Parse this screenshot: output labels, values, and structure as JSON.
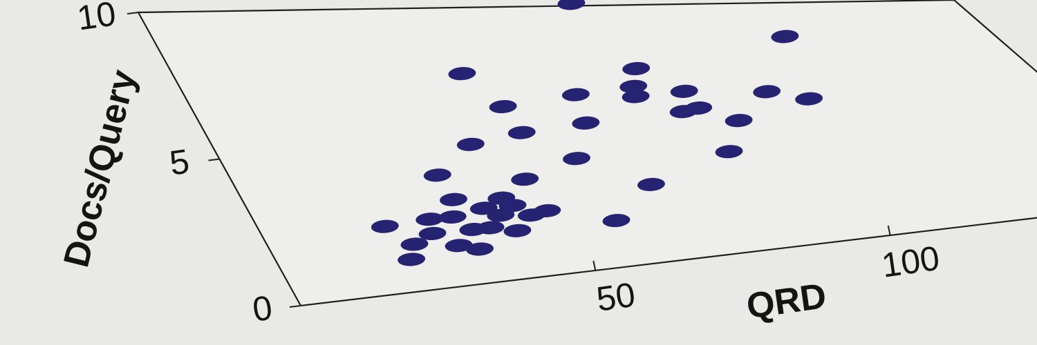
{
  "chart_data": {
    "type": "scatter",
    "x_label": "QRD",
    "y_label": "Docs/Query",
    "xlim": [
      0,
      150
    ],
    "ylim": [
      0,
      10
    ],
    "xticks": [
      50,
      100
    ],
    "yticks": [
      0,
      5,
      10
    ],
    "color": "#262372",
    "x": [
      80,
      113,
      51,
      82,
      79,
      78,
      87,
      101,
      107,
      68,
      54,
      84,
      87,
      92,
      66,
      54,
      44,
      86,
      60,
      35,
      49,
      69,
      35,
      43,
      21,
      59,
      29,
      33,
      39,
      44,
      46,
      49,
      35,
      38,
      42,
      24,
      28,
      31,
      34,
      22,
      41
    ],
    "y": [
      10.1,
      8.5,
      7.5,
      7.4,
      6.7,
      6.3,
      6.4,
      6.2,
      5.8,
      6.5,
      6.2,
      5.6,
      5.7,
      5.1,
      5.4,
      5.2,
      4.9,
      3.9,
      4.1,
      3.9,
      3.5,
      2.9,
      3.0,
      2.9,
      2.3,
      1.7,
      2.4,
      2.4,
      2.6,
      2.6,
      2.2,
      2.3,
      1.9,
      1.9,
      1.7,
      1.6,
      1.9,
      1.4,
      1.2,
      1.1,
      2.3
    ]
  }
}
